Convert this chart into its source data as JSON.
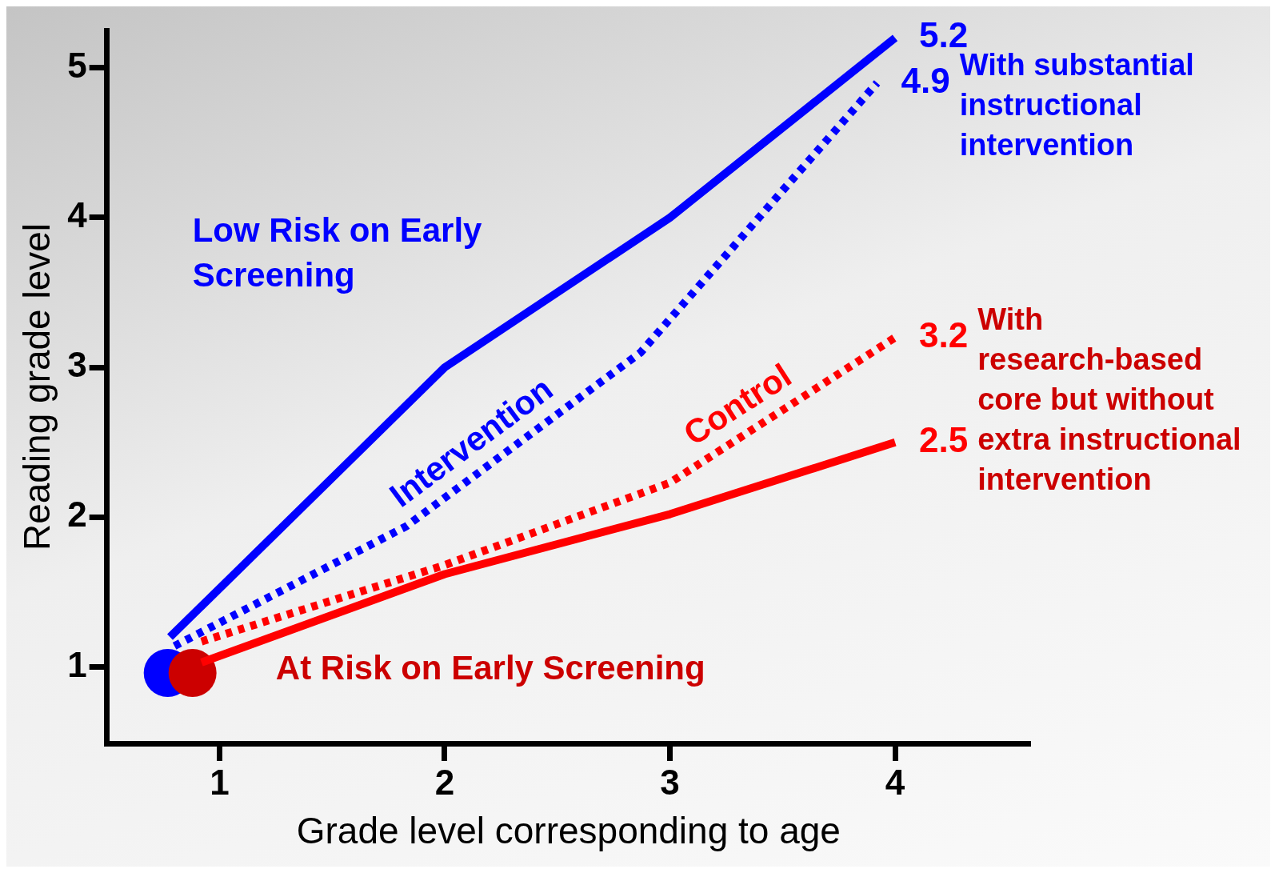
{
  "chart_data": {
    "type": "line",
    "xlabel": "Grade level corresponding to age",
    "ylabel": "Reading grade level",
    "xlim": [
      0.5,
      4.6
    ],
    "xticks": [
      1,
      2,
      3,
      4
    ],
    "ylim": [
      0.49,
      5.25
    ],
    "yticks": [
      1,
      2,
      3,
      4,
      5
    ],
    "grid": false,
    "legend": false,
    "marker": "none",
    "series": [
      {
        "color": "#0000ff",
        "line_style": "solid",
        "x": [
          0.78,
          2,
          3,
          4
        ],
        "values": [
          1.2,
          3,
          4,
          5.2
        ],
        "value_labels": [
          null,
          null,
          null,
          "5.2"
        ]
      },
      {
        "name": "Intervention",
        "color": "#0000ff",
        "line_style": "dotted",
        "x": [
          0.8,
          1.83,
          2.87,
          3.92
        ],
        "values": [
          1.14,
          1.94,
          3.1,
          4.9
        ],
        "value_labels": [
          null,
          null,
          null,
          "4.9"
        ]
      },
      {
        "name": "Control",
        "color": "#ff0000",
        "line_style": "dotted",
        "x": [
          0.92,
          2,
          3,
          4
        ],
        "values": [
          1.17,
          1.68,
          2.23,
          3.2
        ],
        "value_labels": [
          null,
          null,
          null,
          "3.2"
        ]
      },
      {
        "color": "#ff0000",
        "line_style": "solid",
        "x": [
          0.92,
          2,
          3,
          4
        ],
        "values": [
          1.03,
          1.62,
          2.02,
          2.5
        ],
        "value_labels": [
          null,
          null,
          null,
          "2.5"
        ]
      },
      {
        "type": "scatter",
        "marker": "circle",
        "x": [
          0.77,
          0.88
        ],
        "values": [
          0.96,
          0.96
        ],
        "colors": [
          "#0000ff",
          "#cc0000"
        ]
      }
    ],
    "annotations": [
      "Low Risk on Early Screening",
      "At Risk on Early Screening",
      {
        "text": "With substantial instructional intervention",
        "x": 3.92,
        "y": 4.9
      },
      {
        "text": "With research-based core but without extra instructional intervention",
        "x": 4,
        "y": 3.2
      }
    ]
  }
}
